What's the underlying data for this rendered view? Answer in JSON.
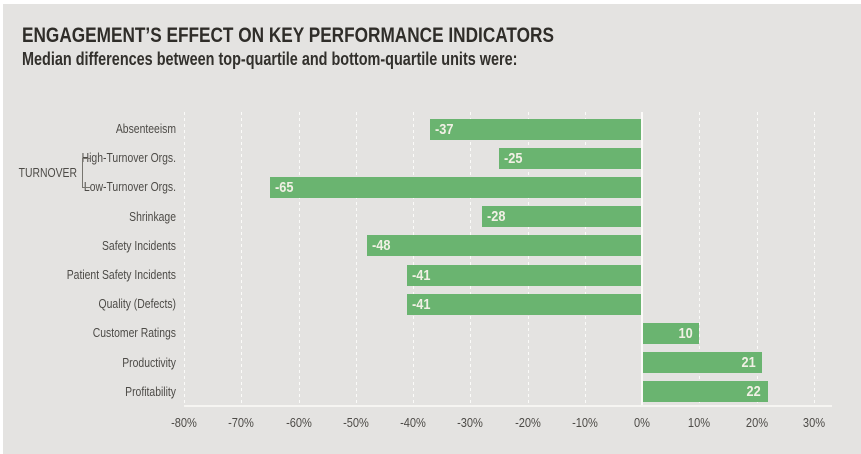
{
  "header": {
    "title": "ENGAGEMENT’S EFFECT ON KEY PERFORMANCE INDICATORS",
    "subtitle": "Median differences between top-quartile and bottom-quartile units were:"
  },
  "chart_data": {
    "type": "bar",
    "orientation": "horizontal",
    "title": "ENGAGEMENT’S EFFECT ON KEY PERFORMANCE INDICATORS",
    "subtitle": "Median differences between top-quartile and bottom-quartile units were:",
    "categories": [
      "Absenteeism",
      "High-Turnover Orgs.",
      "Low-Turnover Orgs.",
      "Shrinkage",
      "Safety Incidents",
      "Patient Safety Incidents",
      "Quality (Defects)",
      "Customer Ratings",
      "Productivity",
      "Profitability"
    ],
    "values": [
      -37,
      -25,
      -65,
      -28,
      -48,
      -41,
      -41,
      10,
      21,
      22
    ],
    "value_labels": [
      "-37",
      "-25",
      "-65",
      "-28",
      "-48",
      "-41",
      "-41",
      "10",
      "21",
      "22"
    ],
    "group": {
      "label": "TURNOVER",
      "category_indexes": [
        1,
        2
      ]
    },
    "x_tick_values": [
      -80,
      -70,
      -60,
      -50,
      -40,
      -30,
      -20,
      -10,
      0,
      10,
      20,
      30
    ],
    "x_tick_labels": [
      "-80%",
      "-70%",
      "-60%",
      "-50%",
      "-40%",
      "-30%",
      "-20%",
      "-10%",
      "0%",
      "10%",
      "20%",
      "30%"
    ],
    "xlim": [
      -84,
      33
    ],
    "unit": "%",
    "grid": "vertical-dashed-white",
    "zero_line": true,
    "legend": "none",
    "colors": {
      "bar": "#6ab470",
      "bar_value_text": "#f1f0e5",
      "panel_background": "#e4e3e1",
      "title_text": "#2f2d29",
      "axis_text": "#4d4b47",
      "gridline": "#fbfaf8"
    }
  }
}
